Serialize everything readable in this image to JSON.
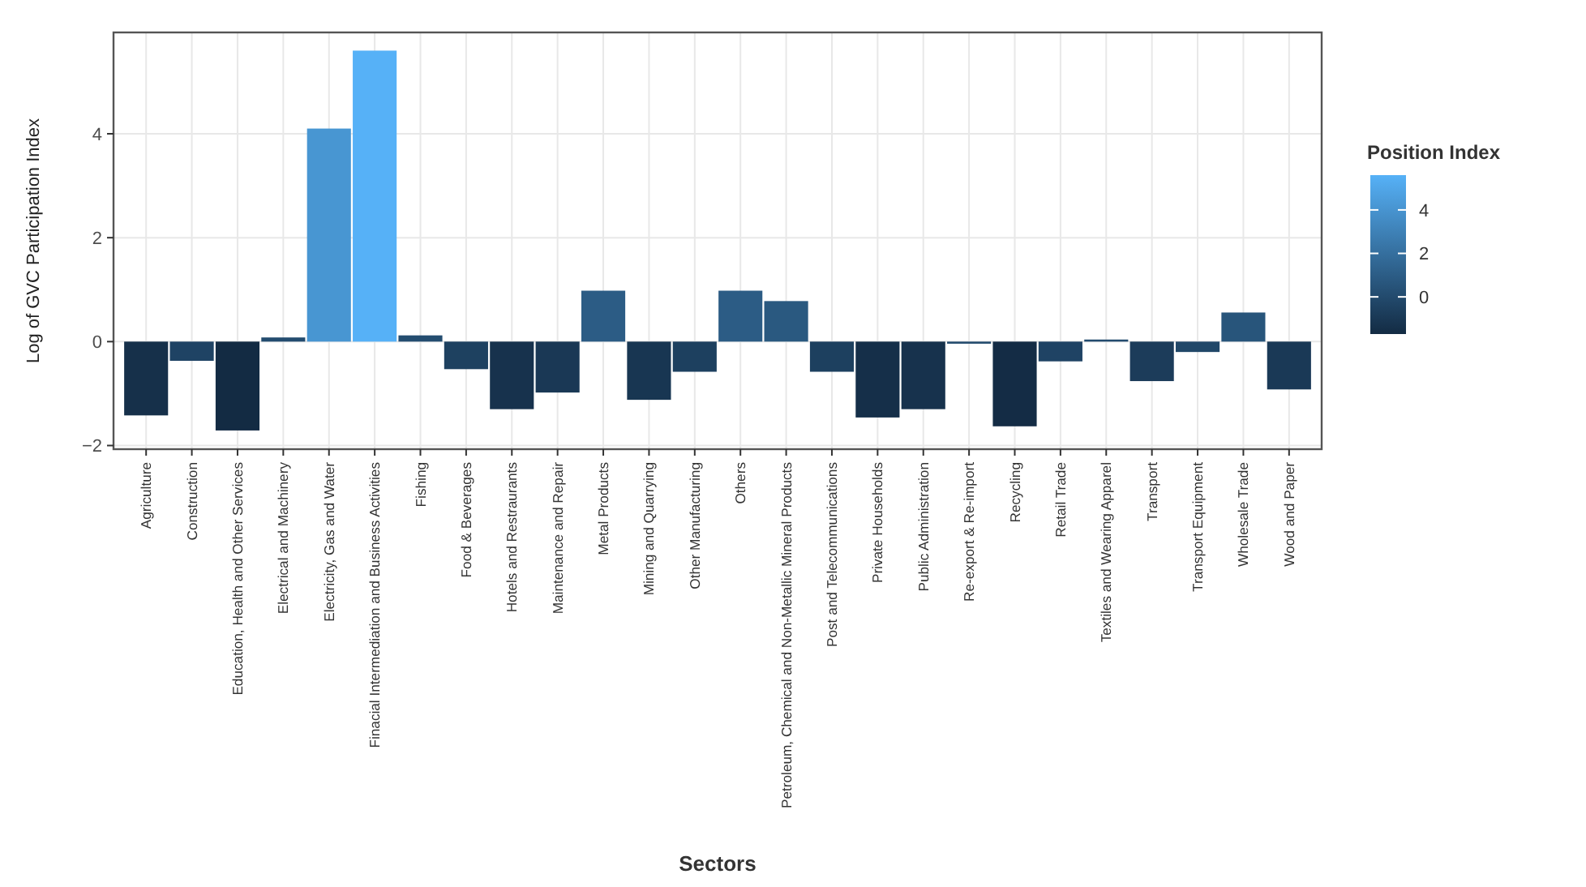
{
  "chart_data": {
    "type": "bar",
    "xlabel": "Sectors",
    "ylabel": "Log of GVC Participation Index",
    "legend_title": "Position Index",
    "categories": [
      "Agriculture",
      "Construction",
      "Education, Health and Other Services",
      "Electrical and Machinery",
      "Electricity, Gas and Water",
      "Finacial Intermediation and Business Activities",
      "Fishing",
      "Food & Beverages",
      "Hotels and Restraurants",
      "Maintenance and Repair",
      "Metal Products",
      "Mining and Quarrying",
      "Other Manufacturing",
      "Others",
      "Petroleum, Chemical and Non-Metallic Mineral Products",
      "Post and Telecommunications",
      "Private Households",
      "Public Administration",
      "Re-export & Re-import",
      "Recycling",
      "Retail Trade",
      "Textiles and Wearing Apparel",
      "Transport",
      "Transport Equipment",
      "Wholesale Trade",
      "Wood and Paper"
    ],
    "values": [
      -1.42,
      -0.37,
      -1.71,
      0.08,
      4.1,
      5.6,
      0.12,
      -0.53,
      -1.3,
      -0.98,
      0.98,
      -1.12,
      -0.58,
      0.98,
      0.78,
      -0.58,
      -1.46,
      -1.3,
      -0.04,
      -1.63,
      -0.38,
      0.04,
      -0.76,
      -0.2,
      0.56,
      -0.92
    ],
    "colors": [
      "#16304a",
      "#1f4364",
      "#132b43",
      "#234c6f",
      "#4896d2",
      "#56b1f7",
      "#244d70",
      "#1e4160",
      "#17324d",
      "#1a3855",
      "#2c5c85",
      "#183652",
      "#1d405f",
      "#2c5c85",
      "#2a5980",
      "#1d405f",
      "#152f49",
      "#17324d",
      "#224a6c",
      "#142c45",
      "#1f4364",
      "#234b6e",
      "#1c3c5a",
      "#214768",
      "#28557b",
      "#1a3956"
    ],
    "ylim": [
      -2.07,
      5.95
    ],
    "yticks": [
      {
        "value": -2,
        "label": "−2"
      },
      0,
      2,
      4
    ],
    "clim": [
      -1.71,
      5.6
    ],
    "cticks": [
      0,
      2,
      4
    ],
    "grid": true
  }
}
